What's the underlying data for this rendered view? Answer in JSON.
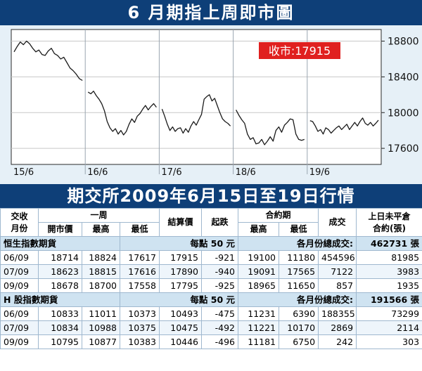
{
  "title": "6 月期指上周即市圖",
  "subtitle": "期交所2009年6月15日至19日行情",
  "chart_data": {
    "type": "line",
    "close_label": "收市:17915",
    "y_ticks": [
      "18800",
      "18400",
      "18000",
      "17600"
    ],
    "ylim": [
      17420,
      18930
    ],
    "day_labels": [
      "15/6",
      "16/6",
      "17/6",
      "18/6",
      "19/6"
    ],
    "series": [
      {
        "values": [
          [
            18680,
            18740,
            18790,
            18760,
            18800,
            18770,
            18720,
            18680,
            18700,
            18650,
            18640,
            18690,
            18720,
            18660,
            18640,
            18600,
            18620,
            18560,
            18500,
            18470,
            18430,
            18380,
            18360
          ],
          [
            18230,
            18210,
            18240,
            18190,
            18150,
            18100,
            18020,
            17900,
            17830,
            17790,
            17820,
            17760,
            17800,
            17750,
            17790,
            17870,
            17930,
            17890,
            17960,
            17990,
            18040,
            18080,
            18030,
            18070,
            18100,
            18060
          ],
          [
            18040,
            17960,
            17870,
            17800,
            17840,
            17790,
            17820,
            17830,
            17770,
            17820,
            17780,
            17850,
            17900,
            17860,
            17920,
            17980,
            18150,
            18180,
            18200,
            18130,
            18160,
            18080,
            18000,
            17930,
            17900,
            17880,
            17850
          ],
          [
            18030,
            17970,
            17920,
            17880,
            17760,
            17700,
            17720,
            17650,
            17660,
            17700,
            17640,
            17680,
            17730,
            17680,
            17800,
            17840,
            17780,
            17860,
            17890,
            17930,
            17920,
            17760,
            17700,
            17690,
            17700
          ],
          [
            17910,
            17900,
            17850,
            17790,
            17810,
            17760,
            17830,
            17810,
            17770,
            17800,
            17830,
            17850,
            17810,
            17840,
            17870,
            17810,
            17850,
            17890,
            17850,
            17900,
            17940,
            17880,
            17860,
            17890,
            17850,
            17880,
            17915
          ]
        ]
      }
    ]
  },
  "table": {
    "header": {
      "contract_month": "交收\n月份",
      "week": "一周",
      "open": "開市價",
      "high": "最高",
      "low": "最低",
      "settle": "結算價",
      "change": "起跌",
      "contract_period": "合約期",
      "cp_high": "最高",
      "cp_low": "最低",
      "volume": "成交",
      "oi": "上日未平倉\n合約(張)"
    },
    "sections": [
      {
        "name": "恒生指數期貨",
        "per_point": "每點 50 元",
        "total_label": "各月份總成交:",
        "total": "462731 張",
        "rows": [
          [
            "06/09",
            "18714",
            "18824",
            "17617",
            "17915",
            "-921",
            "19100",
            "11180",
            "454596",
            "81985"
          ],
          [
            "07/09",
            "18623",
            "18815",
            "17616",
            "17890",
            "-940",
            "19091",
            "17565",
            "7122",
            "3983"
          ],
          [
            "09/09",
            "18678",
            "18700",
            "17558",
            "17795",
            "-925",
            "18965",
            "11650",
            "857",
            "1935"
          ]
        ]
      },
      {
        "name": "H 股指數期貨",
        "per_point": "每點 50 元",
        "total_label": "各月份總成交:",
        "total": "191566 張",
        "rows": [
          [
            "06/09",
            "10833",
            "11011",
            "10373",
            "10493",
            "-475",
            "11231",
            "6390",
            "188355",
            "73299"
          ],
          [
            "07/09",
            "10834",
            "10988",
            "10375",
            "10475",
            "-492",
            "11221",
            "10170",
            "2869",
            "2114"
          ],
          [
            "09/09",
            "10795",
            "10877",
            "10383",
            "10446",
            "-496",
            "11181",
            "6750",
            "242",
            "303"
          ]
        ]
      }
    ]
  }
}
